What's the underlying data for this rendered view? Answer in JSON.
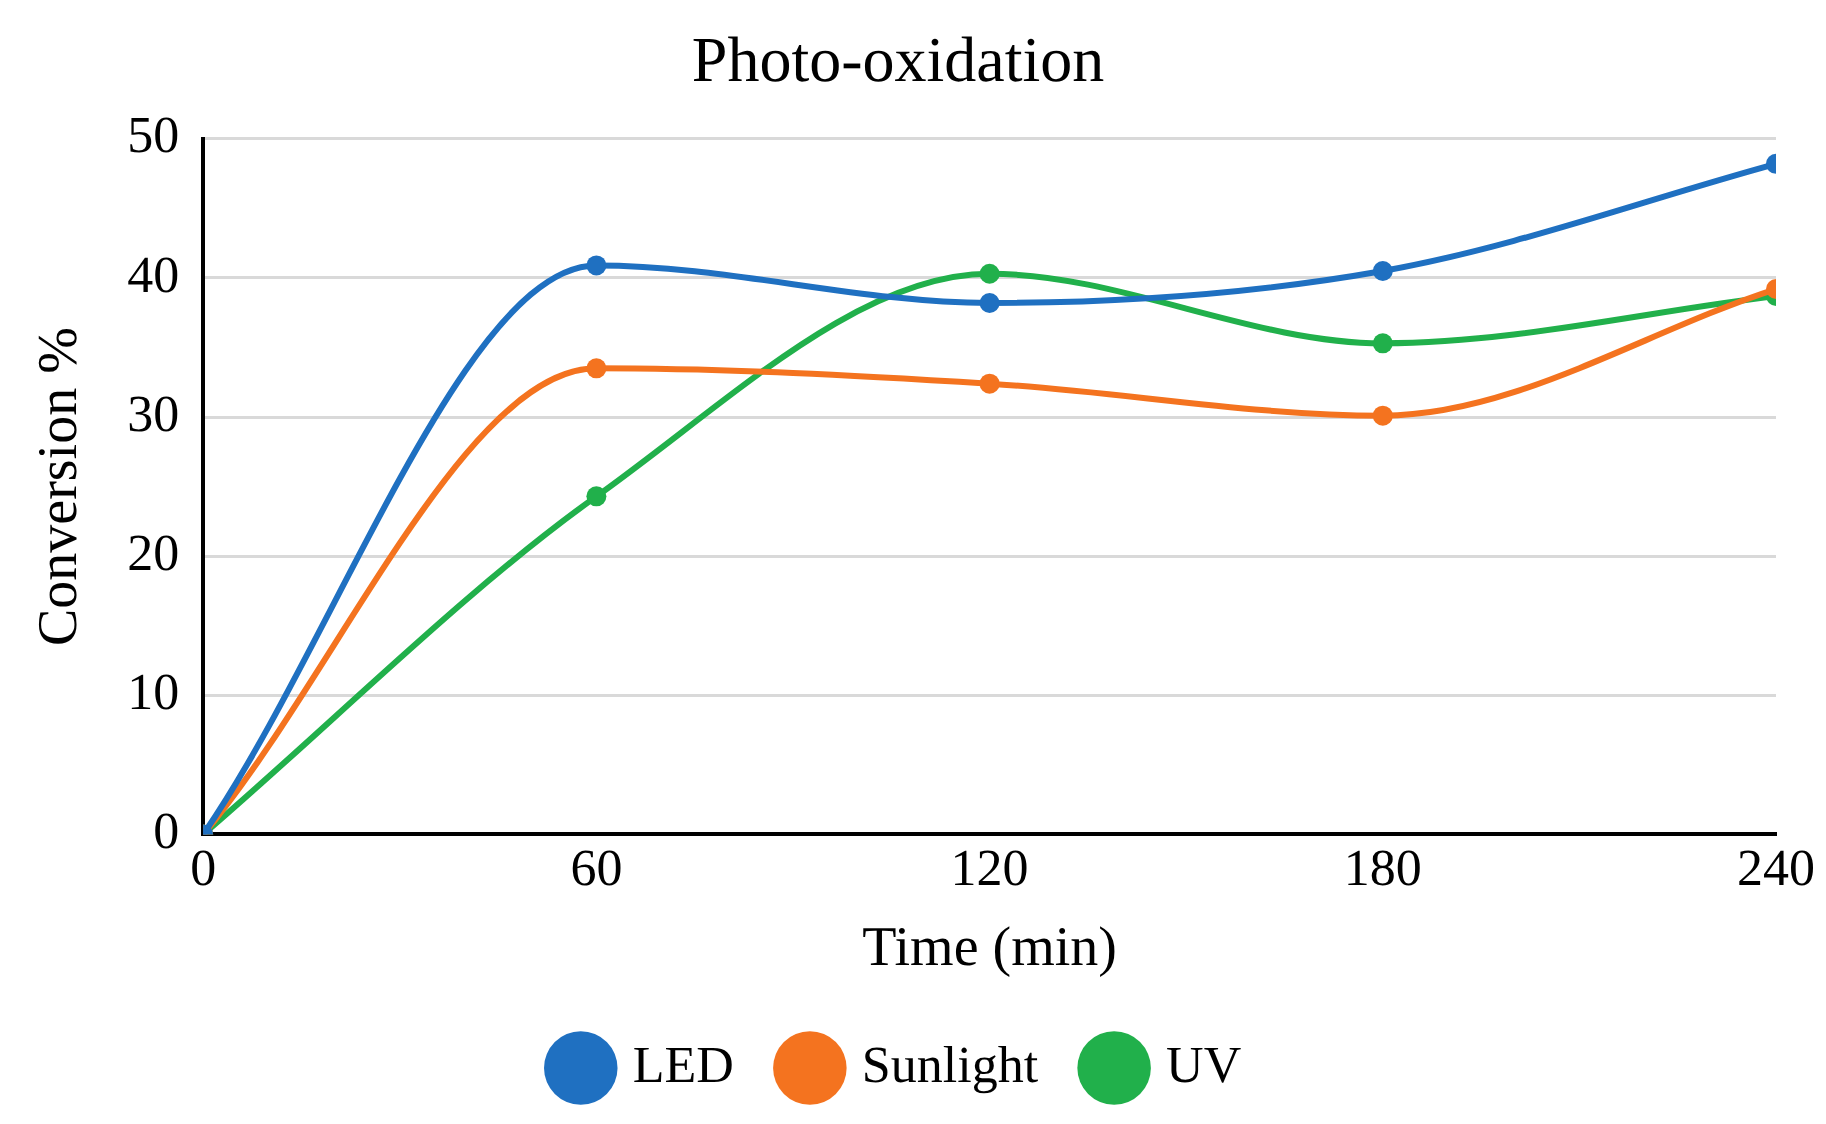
{
  "chart_data": {
    "type": "line",
    "title": "Photo-oxidation",
    "xlabel": "Time (min)",
    "ylabel": "Conversion %",
    "x": [
      0,
      60,
      120,
      180,
      240
    ],
    "series": [
      {
        "name": "LED",
        "color": "#1f70c1",
        "values": [
          0,
          40.9,
          38.2,
          40.5,
          48.2
        ]
      },
      {
        "name": "Sunlight",
        "color": "#f4731f",
        "values": [
          0,
          33.5,
          32.4,
          30.1,
          39.2
        ]
      },
      {
        "name": "UV",
        "color": "#21b04b",
        "values": [
          0,
          24.3,
          40.3,
          35.3,
          38.7
        ]
      }
    ],
    "xlim": [
      0,
      240
    ],
    "xticks": [
      0,
      60,
      120,
      180,
      240
    ],
    "ylim": [
      0,
      50
    ],
    "yticks": [
      0,
      10,
      20,
      30,
      40,
      50
    ],
    "grid": "y",
    "legend": "bottom",
    "marker": "circle",
    "line_style": "solid"
  }
}
